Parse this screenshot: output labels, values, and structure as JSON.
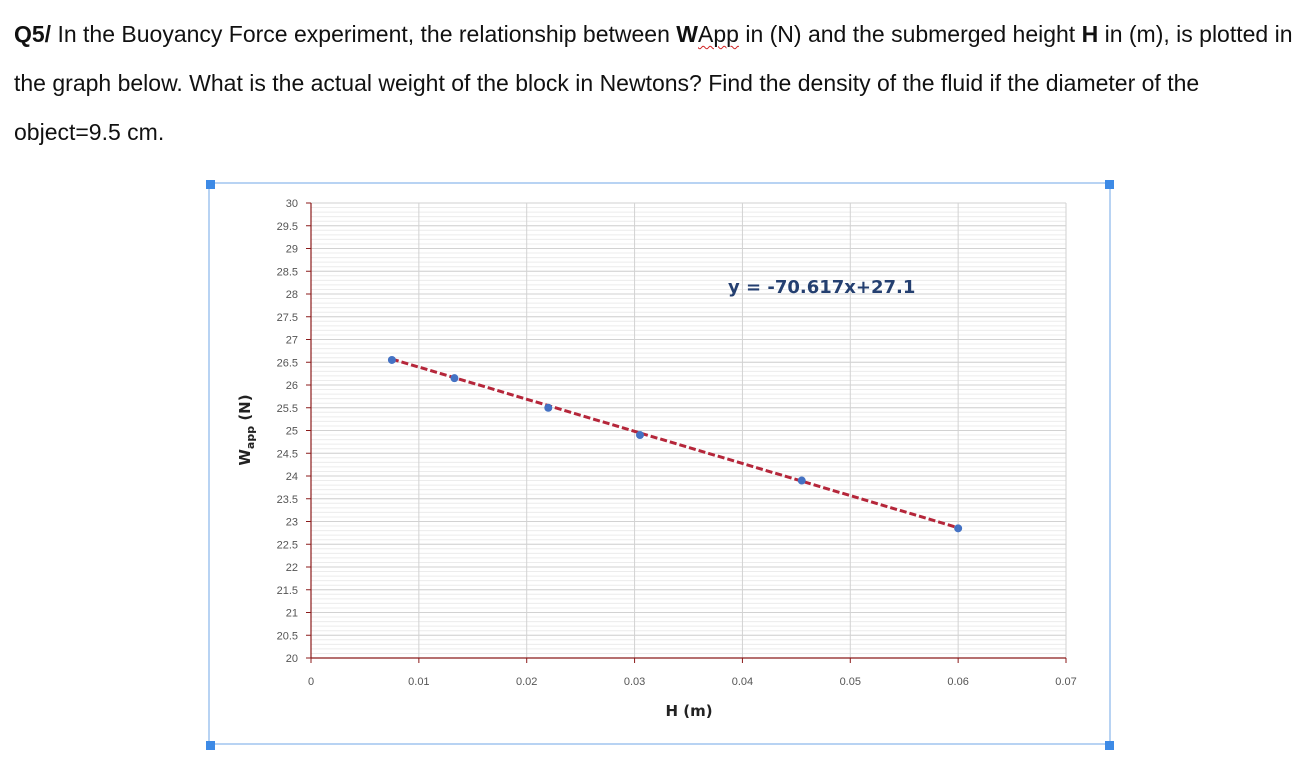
{
  "question": {
    "label": "Q5/",
    "part1": "In the Buoyancy Force experiment, the relationship between ",
    "w_symbol": "W",
    "w_subscript": "App",
    "part2": " in (N) and the submerged height ",
    "h_symbol": "H",
    "part3": " in (m), is plotted in the graph below. What is the actual weight of the block in Newtons? Find the density of the fluid if the diameter of the object=9.5 cm."
  },
  "chart_data": {
    "type": "scatter",
    "x": [
      0.0075,
      0.0133,
      0.022,
      0.0305,
      0.0455,
      0.06
    ],
    "y": [
      26.55,
      26.15,
      25.5,
      24.9,
      23.9,
      22.85
    ],
    "trendline": {
      "slope": -70.617,
      "intercept": 27.1,
      "x_range": [
        0.0075,
        0.06
      ],
      "style": "dashed",
      "color": "#b5263a"
    },
    "equation": "y = -70.617x+27.1",
    "xlabel": "H (m)",
    "ylabel_main": "W",
    "ylabel_sub": "app",
    "ylabel_unit": " (N)",
    "xlim": [
      0,
      0.07
    ],
    "ylim": [
      20,
      30
    ],
    "x_ticks": [
      "0",
      "0.01",
      "0.02",
      "0.03",
      "0.04",
      "0.05",
      "0.06",
      "0.07"
    ],
    "y_ticks": [
      "20",
      "20.5",
      "21",
      "21.5",
      "22",
      "22.5",
      "23",
      "23.5",
      "24",
      "24.5",
      "25",
      "25.5",
      "26",
      "26.5",
      "27",
      "27.5",
      "28",
      "28.5",
      "29",
      "29.5",
      "30"
    ],
    "grid": true,
    "marker_color": "#4472c4",
    "axis_color": "#8b1a1a"
  }
}
